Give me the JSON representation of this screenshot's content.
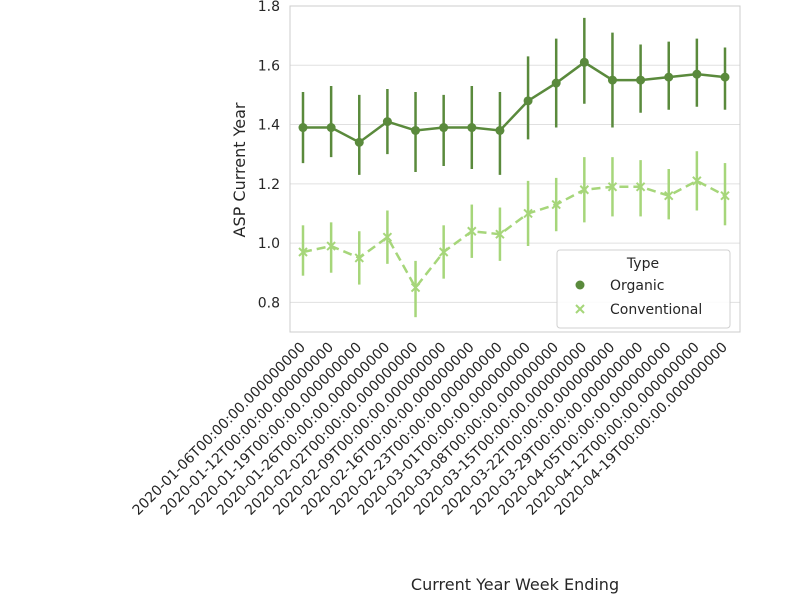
{
  "chart_data": {
    "type": "line",
    "title": "",
    "xlabel": "Current Year Week Ending",
    "ylabel": "ASP Current Year",
    "ylim": [
      0.7,
      1.8
    ],
    "yticks": [
      "0.8",
      "1.0",
      "1.2",
      "1.4",
      "1.6",
      "1.8"
    ],
    "grid": true,
    "legend_title": "Type",
    "legend_placement": "lower-right",
    "categories": [
      "2020-01-06T00:00:00.000000000",
      "2020-01-12T00:00:00.000000000",
      "2020-01-19T00:00:00.000000000",
      "2020-01-26T00:00:00.000000000",
      "2020-02-02T00:00:00.000000000",
      "2020-02-09T00:00:00.000000000",
      "2020-02-16T00:00:00.000000000",
      "2020-02-23T00:00:00.000000000",
      "2020-03-01T00:00:00.000000000",
      "2020-03-08T00:00:00.000000000",
      "2020-03-15T00:00:00.000000000",
      "2020-03-22T00:00:00.000000000",
      "2020-03-29T00:00:00.000000000",
      "2020-04-05T00:00:00.000000000",
      "2020-04-12T00:00:00.000000000",
      "2020-04-19T00:00:00.000000000"
    ],
    "series": [
      {
        "name": "Organic",
        "color": "#5a8a3c",
        "marker": "circle",
        "linestyle": "solid",
        "values": [
          1.39,
          1.39,
          1.34,
          1.41,
          1.38,
          1.39,
          1.39,
          1.38,
          1.48,
          1.54,
          1.61,
          1.55,
          1.55,
          1.56,
          1.57,
          1.56
        ],
        "err_low": [
          1.27,
          1.29,
          1.23,
          1.3,
          1.24,
          1.26,
          1.25,
          1.23,
          1.35,
          1.39,
          1.47,
          1.39,
          1.44,
          1.45,
          1.46,
          1.45
        ],
        "err_high": [
          1.51,
          1.53,
          1.5,
          1.52,
          1.51,
          1.5,
          1.53,
          1.51,
          1.63,
          1.69,
          1.76,
          1.71,
          1.67,
          1.68,
          1.69,
          1.66
        ]
      },
      {
        "name": "Conventional",
        "color": "#a6d67a",
        "marker": "x",
        "linestyle": "dashed",
        "values": [
          0.97,
          0.99,
          0.95,
          1.02,
          0.85,
          0.97,
          1.04,
          1.03,
          1.1,
          1.13,
          1.18,
          1.19,
          1.19,
          1.16,
          1.21,
          1.16
        ],
        "err_low": [
          0.89,
          0.9,
          0.86,
          0.93,
          0.75,
          0.88,
          0.95,
          0.94,
          0.99,
          1.04,
          1.07,
          1.09,
          1.09,
          1.08,
          1.11,
          1.06
        ],
        "err_high": [
          1.06,
          1.07,
          1.04,
          1.11,
          0.94,
          1.06,
          1.13,
          1.12,
          1.21,
          1.22,
          1.29,
          1.29,
          1.28,
          1.25,
          1.31,
          1.27
        ]
      }
    ]
  }
}
